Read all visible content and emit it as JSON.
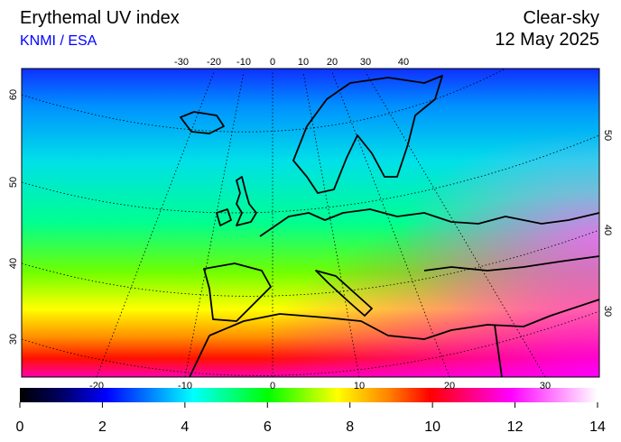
{
  "header": {
    "title": "Erythemal UV index",
    "source": "KNMI / ESA",
    "condition": "Clear-sky",
    "date": "12 May 2025"
  },
  "map": {
    "top_lon_labels": [
      -30,
      -20,
      -10,
      0,
      10,
      20,
      30,
      40
    ],
    "bottom_lon_labels": [
      -20,
      -10,
      0,
      10,
      20,
      30
    ],
    "left_lat_labels": [
      60,
      50,
      40,
      30
    ],
    "right_lat_labels": [
      50,
      40,
      30
    ]
  },
  "colorbar": {
    "lim": [
      0,
      14
    ],
    "ticks": [
      0,
      2,
      4,
      6,
      8,
      10,
      12,
      14
    ]
  }
}
